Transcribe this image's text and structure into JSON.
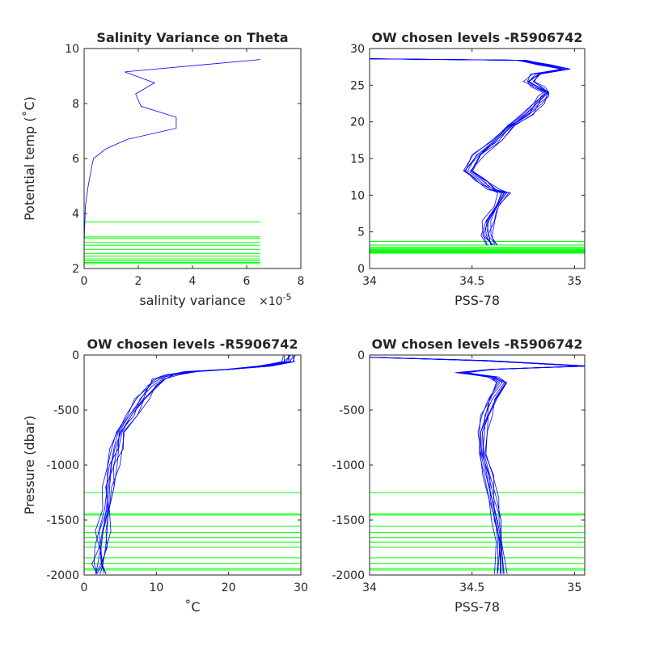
{
  "colors": {
    "profile": "#0000ff",
    "level": "#00ff00",
    "axes": "#262626",
    "background": "#ffffff"
  },
  "chart_data": [
    {
      "type": "line",
      "title": "Salinity Variance on Theta",
      "xlabel": "salinity variance",
      "x_exponent": "×10",
      "x_exponent_power": "-5",
      "ylabel": "Potential temp (˚C)",
      "xlim": [
        0,
        8
      ],
      "ylim": [
        2,
        10
      ],
      "xticks": [
        0,
        2,
        4,
        6,
        8
      ],
      "xtick_labels": [
        "0",
        "2",
        "4",
        "6",
        "8"
      ],
      "yticks": [
        2,
        4,
        6,
        8,
        10
      ],
      "ytick_labels": [
        "2",
        "4",
        "6",
        "8",
        "10"
      ],
      "series": [
        {
          "role": "profile",
          "x": [
            6.5,
            1.5,
            2.6,
            1.9,
            2.1,
            3.4,
            3.4,
            1.6,
            0.8,
            0.35,
            0.3,
            0.15,
            0.05,
            0.02,
            0.0
          ],
          "y": [
            9.6,
            9.15,
            8.75,
            8.35,
            7.9,
            7.5,
            7.1,
            6.7,
            6.35,
            6.0,
            5.8,
            5.0,
            4.3,
            3.5,
            2.9
          ]
        }
      ],
      "level_lines": {
        "x_range": [
          0,
          6.5
        ],
        "y": [
          3.7,
          3.15,
          3.1,
          2.95,
          2.85,
          2.7,
          2.55,
          2.45,
          2.35,
          2.28,
          2.22,
          2.18
        ]
      }
    },
    {
      "type": "line",
      "title": "OW chosen levels -R5906742",
      "xlabel": "PSS-78",
      "ylabel": "",
      "xlim": [
        34,
        35.05
      ],
      "ylim": [
        0,
        30
      ],
      "xticks": [
        34,
        34.5,
        35
      ],
      "xtick_labels": [
        "34",
        "34.5",
        "35"
      ],
      "yticks": [
        0,
        5,
        10,
        15,
        20,
        25,
        30
      ],
      "ytick_labels": [
        "0",
        "5",
        "10",
        "15",
        "20",
        "25",
        "30"
      ],
      "series": [
        {
          "role": "profile",
          "x": [
            34.6,
            34.57,
            34.58,
            34.62,
            34.66,
            34.6,
            34.55,
            34.48,
            34.53,
            34.62,
            34.7,
            34.77,
            34.82,
            34.85,
            34.86,
            34.82,
            34.78,
            34.82,
            34.95,
            34.85,
            34.74,
            34.0
          ],
          "y": [
            3.2,
            4.5,
            6.5,
            8.5,
            10.3,
            10.8,
            12.0,
            13.3,
            15.5,
            17.5,
            19.5,
            21.0,
            22.5,
            23.5,
            24.0,
            24.8,
            25.5,
            26.5,
            27.2,
            27.8,
            28.4,
            28.6
          ]
        }
      ],
      "spread": 0.022,
      "level_lines": {
        "x_range": [
          34,
          35.05
        ],
        "y": [
          3.7,
          3.2,
          2.9,
          2.75,
          2.6,
          2.5,
          2.4,
          2.3,
          2.2,
          2.1
        ]
      }
    },
    {
      "type": "line",
      "title": "OW chosen levels -R5906742",
      "xlabel": "˚C",
      "ylabel": "Pressure (dbar)",
      "xlim": [
        0,
        30
      ],
      "ylim": [
        -2000,
        0
      ],
      "xticks": [
        0,
        10,
        20,
        30
      ],
      "xtick_labels": [
        "0",
        "10",
        "20",
        "30"
      ],
      "yticks": [
        -2000,
        -1500,
        -1000,
        -500,
        0
      ],
      "ytick_labels": [
        "-2000",
        "-1500",
        "-1000",
        "-500",
        "0"
      ],
      "series": [
        {
          "role": "profile",
          "x": [
            28.5,
            28.2,
            25.0,
            20.0,
            15.0,
            12.0,
            10.5,
            9.5,
            8.0,
            6.5,
            5.3,
            4.5,
            3.9,
            3.4,
            3.0,
            2.6,
            2.4,
            2.2,
            2.1
          ],
          "y": [
            0,
            -60,
            -100,
            -130,
            -150,
            -180,
            -220,
            -280,
            -400,
            -550,
            -700,
            -850,
            -1000,
            -1200,
            -1400,
            -1600,
            -1750,
            -1900,
            -1990
          ]
        }
      ],
      "spread": 0.7,
      "level_lines": {
        "x_range": [
          0,
          30
        ],
        "y": [
          -1250,
          -1445,
          -1455,
          -1555,
          -1615,
          -1660,
          -1700,
          -1745,
          -1845,
          -1895,
          -1940,
          -1955
        ]
      }
    },
    {
      "type": "line",
      "title": "OW chosen levels -R5906742",
      "xlabel": "PSS-78",
      "ylabel": "",
      "xlim": [
        34,
        35.05
      ],
      "ylim": [
        -2000,
        0
      ],
      "xticks": [
        34,
        34.5,
        35
      ],
      "xtick_labels": [
        "34",
        "34.5",
        "35"
      ],
      "yticks": [
        -2000,
        -1500,
        -1000,
        -500,
        0
      ],
      "ytick_labels": [
        "-2000",
        "-1500",
        "-1000",
        "-500",
        "0"
      ],
      "series": [
        {
          "role": "profile",
          "x": [
            34.0,
            34.55,
            35.05,
            34.6,
            34.45,
            34.6,
            34.65,
            34.6,
            34.57,
            34.55,
            34.56,
            34.58,
            34.6,
            34.62,
            34.63,
            34.64
          ],
          "y": [
            -20,
            -50,
            -100,
            -130,
            -160,
            -200,
            -250,
            -400,
            -550,
            -700,
            -900,
            -1100,
            -1300,
            -1500,
            -1700,
            -1990
          ]
        }
      ],
      "spread": 0.02,
      "level_lines": {
        "x_range": [
          34,
          35.05
        ],
        "y": [
          -1250,
          -1445,
          -1455,
          -1555,
          -1615,
          -1660,
          -1700,
          -1745,
          -1845,
          -1895,
          -1940,
          -1955
        ]
      }
    }
  ]
}
